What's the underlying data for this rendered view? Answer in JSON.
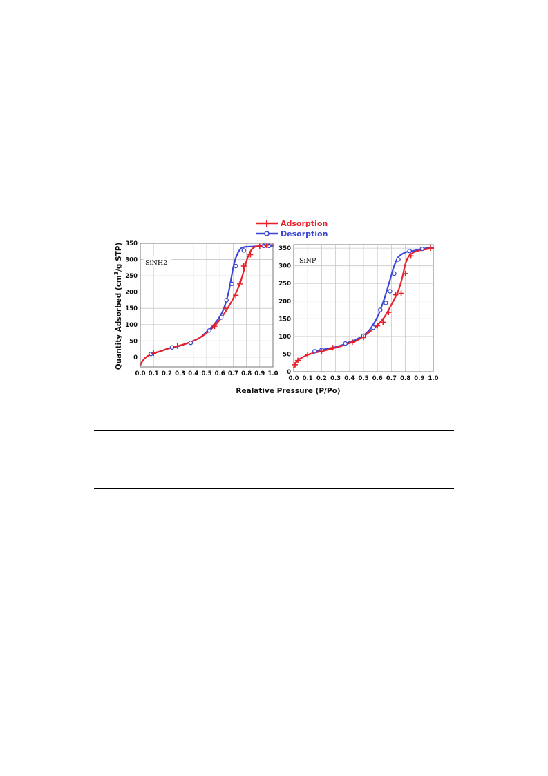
{
  "chart_data": {
    "type": "line",
    "xlabel": "Realative Pressure (P/Po)",
    "ylabel": "Quantity Adsorbed (cm³/g STP)",
    "ylabel_parts": {
      "a": "Quantity Adsorbed (cm",
      "sup": "3",
      "b": "/g STP)"
    },
    "legend": {
      "position": "top-center",
      "entries": [
        {
          "name": "Adsorption",
          "color": "#e8202a",
          "marker": "plus"
        },
        {
          "name": "Desorption",
          "color": "#3a46d4",
          "marker": "open-circle"
        }
      ]
    },
    "grid": true,
    "panels": [
      {
        "label": "SiNH2",
        "xlim": [
          0.0,
          1.0
        ],
        "ylim": [
          -30,
          350
        ],
        "xticks": [
          "0.0",
          "0.1",
          "0.2",
          "0.3",
          "0.4",
          "0.5",
          "0.6",
          "0.7",
          "0.8",
          "0.9",
          "1.0"
        ],
        "yticks": [
          "350",
          "300",
          "250",
          "200",
          "150",
          "100",
          "50",
          "0"
        ],
        "ytick_values": [
          350,
          300,
          250,
          200,
          150,
          100,
          50,
          0
        ],
        "series": [
          {
            "name": "Adsorption",
            "curve": [
              [
                0.0,
                -25
              ],
              [
                0.02,
                -10
              ],
              [
                0.05,
                2
              ],
              [
                0.1,
                12
              ],
              [
                0.15,
                18
              ],
              [
                0.2,
                25
              ],
              [
                0.25,
                31
              ],
              [
                0.3,
                36
              ],
              [
                0.35,
                42
              ],
              [
                0.4,
                50
              ],
              [
                0.45,
                60
              ],
              [
                0.5,
                74
              ],
              [
                0.55,
                92
              ],
              [
                0.6,
                115
              ],
              [
                0.65,
                145
              ],
              [
                0.7,
                180
              ],
              [
                0.75,
                225
              ],
              [
                0.78,
                265
              ],
              [
                0.8,
                295
              ],
              [
                0.83,
                325
              ],
              [
                0.86,
                338
              ],
              [
                0.9,
                342
              ],
              [
                0.95,
                344
              ],
              [
                1.0,
                345
              ]
            ],
            "markers": [
              [
                0.1,
                12
              ],
              [
                0.28,
                34
              ],
              [
                0.56,
                95
              ],
              [
                0.64,
                150
              ],
              [
                0.72,
                190
              ],
              [
                0.75,
                225
              ],
              [
                0.78,
                280
              ],
              [
                0.83,
                315
              ],
              [
                0.9,
                340
              ],
              [
                0.95,
                344
              ]
            ]
          },
          {
            "name": "Desorption",
            "curve": [
              [
                0.08,
                10
              ],
              [
                0.15,
                18
              ],
              [
                0.2,
                25
              ],
              [
                0.25,
                30
              ],
              [
                0.3,
                35
              ],
              [
                0.35,
                42
              ],
              [
                0.4,
                50
              ],
              [
                0.45,
                60
              ],
              [
                0.5,
                78
              ],
              [
                0.55,
                98
              ],
              [
                0.6,
                125
              ],
              [
                0.63,
                150
              ],
              [
                0.66,
                190
              ],
              [
                0.68,
                230
              ],
              [
                0.7,
                275
              ],
              [
                0.72,
                305
              ],
              [
                0.75,
                330
              ],
              [
                0.78,
                338
              ],
              [
                0.85,
                340
              ],
              [
                0.9,
                341
              ],
              [
                0.95,
                342
              ],
              [
                1.0,
                342
              ]
            ],
            "markers": [
              [
                0.08,
                10
              ],
              [
                0.24,
                30
              ],
              [
                0.38,
                44
              ],
              [
                0.52,
                82
              ],
              [
                0.61,
                122
              ],
              [
                0.65,
                175
              ],
              [
                0.69,
                225
              ],
              [
                0.72,
                280
              ],
              [
                0.78,
                328
              ],
              [
                0.93,
                342
              ],
              [
                0.97,
                342
              ]
            ]
          }
        ]
      },
      {
        "label": "SiNP",
        "xlim": [
          0.0,
          1.0
        ],
        "ylim": [
          0,
          360
        ],
        "xticks": [
          "0.0",
          "0.1",
          "0.2",
          "0.3",
          "0.4",
          "0.5",
          "0.6",
          "0.7",
          "0.8",
          "0.9",
          "1.0"
        ],
        "yticks": [
          "350",
          "300",
          "250",
          "200",
          "150",
          "100",
          "50",
          "0"
        ],
        "ytick_values": [
          350,
          300,
          250,
          200,
          150,
          100,
          50,
          0
        ],
        "series": [
          {
            "name": "Adsorption",
            "curve": [
              [
                0.0,
                12
              ],
              [
                0.02,
                28
              ],
              [
                0.05,
                38
              ],
              [
                0.1,
                48
              ],
              [
                0.15,
                54
              ],
              [
                0.2,
                58
              ],
              [
                0.25,
                63
              ],
              [
                0.3,
                68
              ],
              [
                0.35,
                74
              ],
              [
                0.4,
                81
              ],
              [
                0.45,
                88
              ],
              [
                0.5,
                100
              ],
              [
                0.55,
                115
              ],
              [
                0.6,
                132
              ],
              [
                0.65,
                155
              ],
              [
                0.7,
                190
              ],
              [
                0.75,
                230
              ],
              [
                0.78,
                270
              ],
              [
                0.8,
                305
              ],
              [
                0.83,
                330
              ],
              [
                0.87,
                340
              ],
              [
                0.92,
                345
              ],
              [
                1.0,
                350
              ]
            ],
            "markers": [
              [
                0.01,
                20
              ],
              [
                0.03,
                32
              ],
              [
                0.1,
                48
              ],
              [
                0.2,
                58
              ],
              [
                0.28,
                68
              ],
              [
                0.42,
                84
              ],
              [
                0.5,
                97
              ],
              [
                0.6,
                130
              ],
              [
                0.64,
                140
              ],
              [
                0.68,
                168
              ],
              [
                0.73,
                218
              ],
              [
                0.77,
                222
              ],
              [
                0.8,
                278
              ],
              [
                0.84,
                328
              ],
              [
                0.98,
                350
              ]
            ]
          },
          {
            "name": "Desorption",
            "curve": [
              [
                0.15,
                58
              ],
              [
                0.2,
                62
              ],
              [
                0.25,
                66
              ],
              [
                0.3,
                70
              ],
              [
                0.35,
                76
              ],
              [
                0.4,
                84
              ],
              [
                0.45,
                92
              ],
              [
                0.5,
                103
              ],
              [
                0.55,
                122
              ],
              [
                0.6,
                155
              ],
              [
                0.63,
                185
              ],
              [
                0.66,
                220
              ],
              [
                0.69,
                260
              ],
              [
                0.72,
                300
              ],
              [
                0.75,
                325
              ],
              [
                0.8,
                338
              ],
              [
                0.85,
                342
              ],
              [
                0.9,
                346
              ],
              [
                0.95,
                350
              ],
              [
                1.0,
                352
              ]
            ],
            "markers": [
              [
                0.15,
                58
              ],
              [
                0.2,
                62
              ],
              [
                0.37,
                80
              ],
              [
                0.5,
                102
              ],
              [
                0.57,
                125
              ],
              [
                0.62,
                175
              ],
              [
                0.66,
                195
              ],
              [
                0.69,
                228
              ],
              [
                0.72,
                278
              ],
              [
                0.75,
                318
              ],
              [
                0.83,
                342
              ],
              [
                0.92,
                348
              ]
            ]
          }
        ]
      }
    ]
  }
}
